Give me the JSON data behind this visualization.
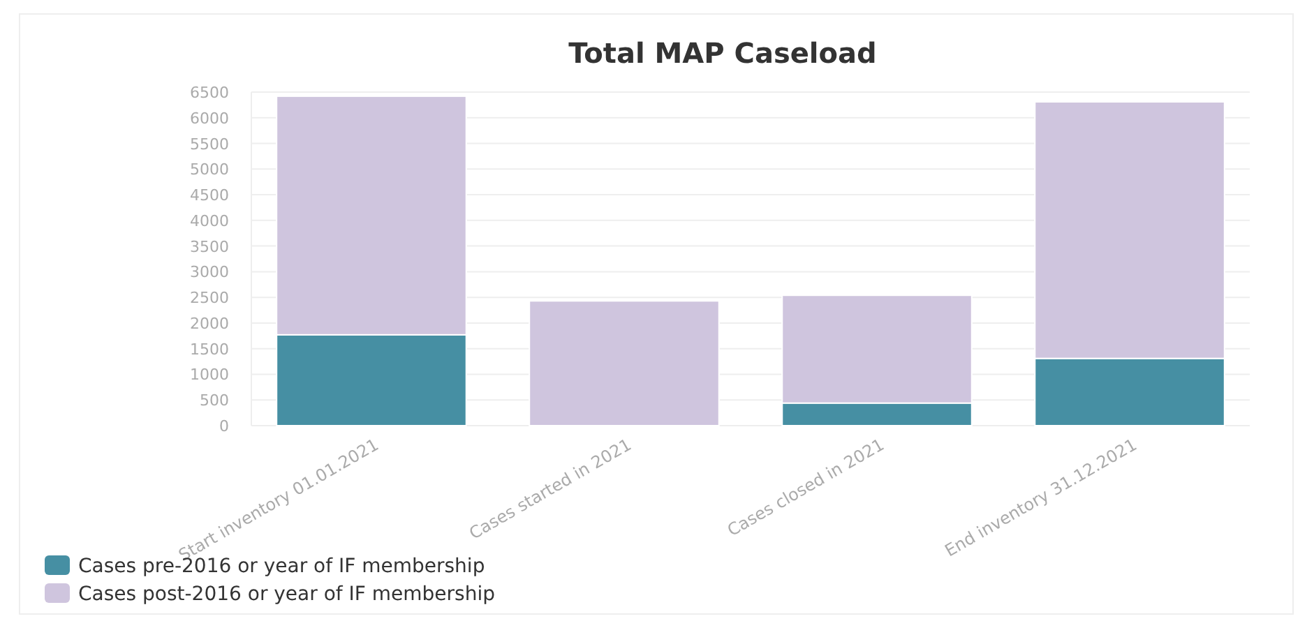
{
  "chart_data": {
    "type": "bar",
    "title": "Total MAP Caseload",
    "categories": [
      "Start inventory 01.01.2021",
      "Cases started in 2021",
      "Cases closed in 2021",
      "End inventory 31.12.2021"
    ],
    "series": [
      {
        "name": "Cases pre-2016 or year of IF membership",
        "color": "#468fa3",
        "values": [
          1770,
          0,
          440,
          1310
        ]
      },
      {
        "name": "Cases post-2016 or year of IF membership",
        "color": "#cfc5de",
        "values": [
          4650,
          2430,
          2100,
          5000
        ]
      }
    ],
    "stacked": true,
    "ylim": [
      0,
      6500
    ],
    "yticks": [
      0,
      500,
      1000,
      1500,
      2000,
      2500,
      3000,
      3500,
      4000,
      4500,
      5000,
      5500,
      6000,
      6500
    ],
    "grid": "y",
    "legend": "bottom left"
  }
}
